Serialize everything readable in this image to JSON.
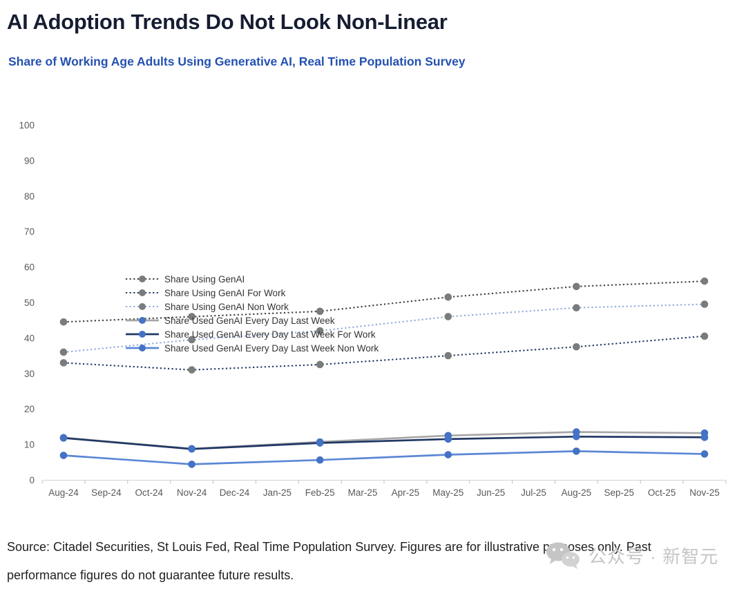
{
  "header": {
    "title": "AI Adoption Trends Do Not Look Non-Linear",
    "subtitle": "Share of Working Age Adults Using Generative AI, Real Time Population Survey"
  },
  "chart_data": {
    "type": "line",
    "title": "Share of Working Age Adults Using Generative AI, Real Time Population Survey",
    "categories": [
      "Aug-24",
      "Sep-24",
      "Oct-24",
      "Nov-24",
      "Dec-24",
      "Jan-25",
      "Feb-25",
      "Mar-25",
      "Apr-25",
      "May-25",
      "Jun-25",
      "Jul-25",
      "Aug-25",
      "Sep-25",
      "Oct-25",
      "Nov-25"
    ],
    "point_months": [
      "Aug-24",
      "Nov-24",
      "Feb-25",
      "May-25",
      "Aug-25",
      "Nov-25"
    ],
    "ylim": [
      0,
      100
    ],
    "ytick_step": 10,
    "grid": false,
    "legend_position": "inside-top-left",
    "series": [
      {
        "name": "Share Using GenAI",
        "line": "dotted",
        "color": "#3f3f3f",
        "marker_color": "#7b7b7b",
        "values": [
          44.5,
          46,
          47.5,
          51.5,
          54.5,
          56
        ]
      },
      {
        "name": "Share Using GenAI For Work",
        "line": "dotted",
        "color": "#203864",
        "marker_color": "#7b7b7b",
        "values": [
          33,
          31,
          32.5,
          35,
          37.5,
          40.5
        ]
      },
      {
        "name": "Share Using GenAI Non Work",
        "line": "dotted",
        "color": "#8faadc",
        "marker_color": "#7b7b7b",
        "values": [
          36,
          39.5,
          42,
          46,
          48.5,
          49.5
        ]
      },
      {
        "name": "Share Used GenAI Every Day Last Week",
        "line": "solid",
        "color": "#a6a6a6",
        "marker_color": "#4472c4",
        "values": [
          11.9,
          8.8,
          10.7,
          12.5,
          13.5,
          13.2
        ]
      },
      {
        "name": "Share Used GenAI Every Day Last Week For Work",
        "line": "solid",
        "color": "#203864",
        "marker_color": "#4472c4",
        "values": [
          11.8,
          8.7,
          10.4,
          11.5,
          12.2,
          12
        ]
      },
      {
        "name": "Share Used GenAI Every Day Last Week Non Work",
        "line": "solid",
        "color": "#5b87d5",
        "marker_color": "#4472c4",
        "values": [
          6.9,
          4.4,
          5.6,
          7.1,
          8.1,
          7.3
        ]
      }
    ],
    "axis_colors": {
      "label": "#595959",
      "axis_line": "#d9d9d9",
      "tick": "#bfbfbf"
    }
  },
  "footer": {
    "source_text": "Source: Citadel Securities, St Louis Fed, Real Time Population Survey. Figures are for illustrative purposes only. Past performance figures do not guarantee future results."
  },
  "watermark": {
    "icon": "wechat-icon",
    "text": "公众号 · 新智元"
  }
}
